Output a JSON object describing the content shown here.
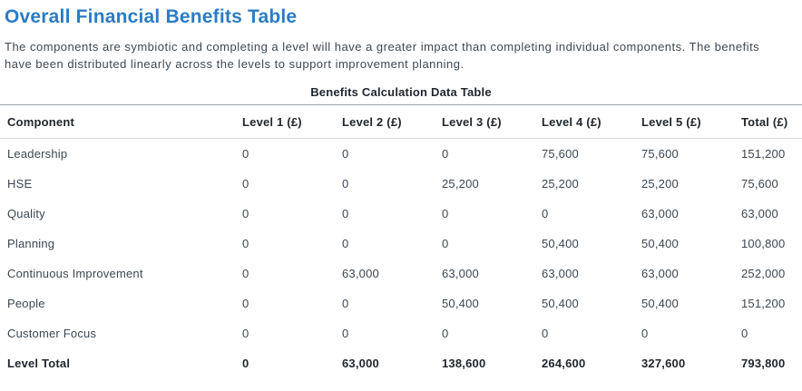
{
  "page": {
    "title": "Overall Financial Benefits Table",
    "description": "The components are symbiotic and completing a level will have a greater impact than completing individual components. The benefits have been distributed linearly across the levels to support improvement planning."
  },
  "colors": {
    "title_blue": "#2b7cc4",
    "body_text": "#3d4852",
    "emphasis_text": "#21272e",
    "table_border_top": "#9aa1a7",
    "table_border_bottom": "#d9dcdf",
    "background": "#ffffff"
  },
  "table": {
    "caption": "Benefits Calculation Data Table",
    "columns": [
      "Component",
      "Level 1 (£)",
      "Level 2 (£)",
      "Level 3 (£)",
      "Level 4 (£)",
      "Level 5 (£)",
      "Total (£)"
    ],
    "rows": [
      {
        "cells": [
          "Leadership",
          "0",
          "0",
          "0",
          "75,600",
          "75,600",
          "151,200"
        ]
      },
      {
        "cells": [
          "HSE",
          "0",
          "0",
          "25,200",
          "25,200",
          "25,200",
          "75,600"
        ]
      },
      {
        "cells": [
          "Quality",
          "0",
          "0",
          "0",
          "0",
          "63,000",
          "63,000"
        ]
      },
      {
        "cells": [
          "Planning",
          "0",
          "0",
          "0",
          "50,400",
          "50,400",
          "100,800"
        ]
      },
      {
        "cells": [
          "Continuous Improvement",
          "0",
          "63,000",
          "63,000",
          "63,000",
          "63,000",
          "252,000"
        ]
      },
      {
        "cells": [
          "People",
          "0",
          "0",
          "50,400",
          "50,400",
          "50,400",
          "151,200"
        ]
      },
      {
        "cells": [
          "Customer Focus",
          "0",
          "0",
          "0",
          "0",
          "0",
          "0"
        ]
      },
      {
        "cells": [
          "Level Total",
          "0",
          "63,000",
          "138,600",
          "264,600",
          "327,600",
          "793,800"
        ]
      }
    ]
  }
}
